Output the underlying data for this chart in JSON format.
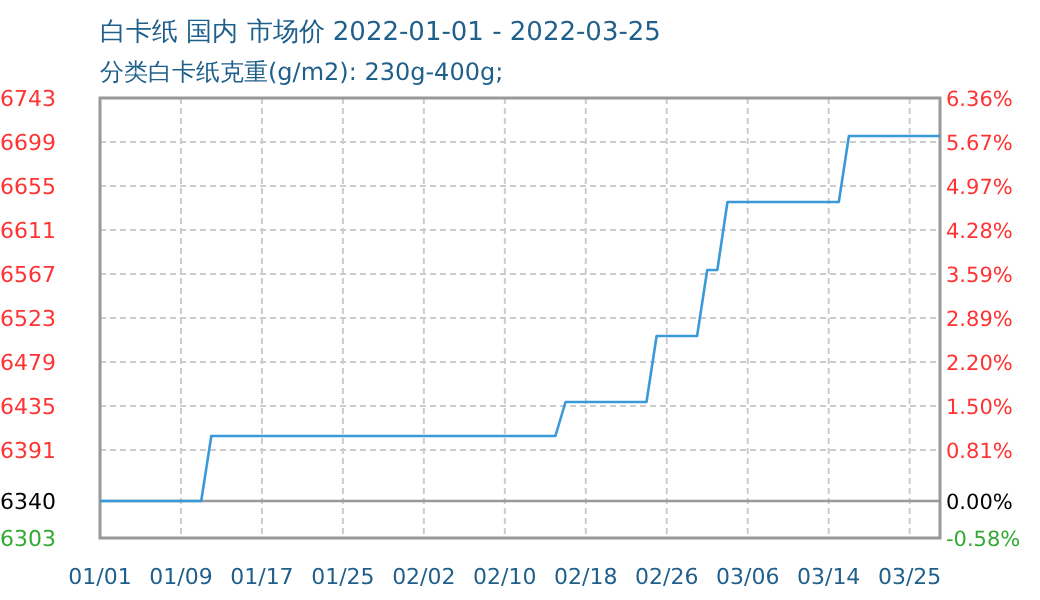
{
  "chart_data": {
    "type": "line",
    "title": "白卡纸 国内 市场价 2022-01-01 - 2022-03-25",
    "subtitle": "分类白卡纸克重(g/m2): 230g-400g;",
    "x": [
      "2022-01-01",
      "2022-01-11",
      "2022-01-12",
      "2022-02-15",
      "2022-02-16",
      "2022-02-24",
      "2022-02-25",
      "2022-03-01",
      "2022-03-02",
      "2022-03-03",
      "2022-03-04",
      "2022-03-15",
      "2022-03-16",
      "2022-03-25"
    ],
    "series": [
      {
        "color": "#3a9ad9",
        "values": [
          6340,
          6340,
          6405,
          6405,
          6439,
          6439,
          6505,
          6505,
          6571,
          6571,
          6639,
          6639,
          6705,
          6705
        ]
      }
    ],
    "xlim": [
      "2022-01-01",
      "2022-03-25"
    ],
    "xticks": [
      {
        "value": "2022-01-01",
        "label": "01/01"
      },
      {
        "value": "2022-01-09",
        "label": "01/09"
      },
      {
        "value": "2022-01-17",
        "label": "01/17"
      },
      {
        "value": "2022-01-25",
        "label": "01/25"
      },
      {
        "value": "2022-02-02",
        "label": "02/02"
      },
      {
        "value": "2022-02-10",
        "label": "02/10"
      },
      {
        "value": "2022-02-18",
        "label": "02/18"
      },
      {
        "value": "2022-02-26",
        "label": "02/26"
      },
      {
        "value": "2022-03-06",
        "label": "03/06"
      },
      {
        "value": "2022-03-14",
        "label": "03/14"
      },
      {
        "value": "2022-03-22",
        "label": "03/25"
      }
    ],
    "ylim": [
      6303,
      6743
    ],
    "yticks": [
      6303,
      6340,
      6391,
      6435,
      6479,
      6523,
      6567,
      6611,
      6655,
      6699,
      6743
    ],
    "y2lim": [
      -0.58,
      6.36
    ],
    "y2ticks": [
      {
        "value": -0.58,
        "label": "-0.58%"
      },
      {
        "value": 0,
        "label": "0.00%"
      },
      {
        "value": 0.81,
        "label": "0.81%"
      },
      {
        "value": 1.5,
        "label": "1.50%"
      },
      {
        "value": 2.2,
        "label": "2.20%"
      },
      {
        "value": 2.89,
        "label": "2.89%"
      },
      {
        "value": 3.59,
        "label": "3.59%"
      },
      {
        "value": 4.28,
        "label": "4.28%"
      },
      {
        "value": 4.97,
        "label": "4.97%"
      },
      {
        "value": 5.67,
        "label": "5.67%"
      },
      {
        "value": 6.36,
        "label": "6.36%"
      }
    ],
    "ref_lines": [
      {
        "axis": "y",
        "value": 6340,
        "color": "#999999",
        "line_style": "solid"
      }
    ],
    "grid": true,
    "line_style": "solid"
  }
}
